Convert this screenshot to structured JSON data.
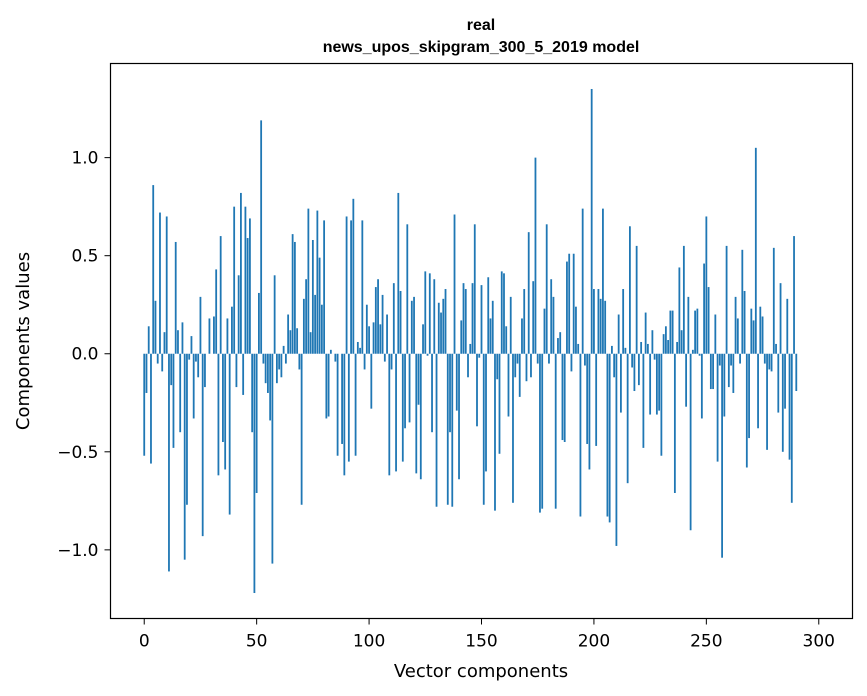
{
  "chart_data": {
    "type": "bar",
    "title_lines": [
      "real",
      "news_upos_skipgram_300_5_2019 model"
    ],
    "xlabel": "Vector components",
    "ylabel": "Components values",
    "xlim": [
      -15,
      315
    ],
    "ylim": [
      -1.35,
      1.48
    ],
    "x_ticks": [
      0,
      50,
      100,
      150,
      200,
      250,
      300
    ],
    "x_tick_labels": [
      "0",
      "50",
      "100",
      "150",
      "200",
      "250",
      "300"
    ],
    "y_ticks": [
      -1.0,
      -0.5,
      0.0,
      0.5,
      1.0
    ],
    "y_tick_labels": [
      "−1.0",
      "−0.5",
      "0.0",
      "0.5",
      "1.0"
    ],
    "grid": false,
    "bar_color": "#1f77b4",
    "values": [
      -0.52,
      -0.2,
      0.14,
      -0.56,
      0.86,
      0.27,
      -0.05,
      0.72,
      -0.09,
      0.11,
      0.7,
      -1.11,
      -0.16,
      -0.48,
      0.57,
      0.12,
      -0.4,
      0.16,
      -1.05,
      -0.77,
      -0.03,
      0.09,
      -0.33,
      -0.04,
      -0.12,
      0.29,
      -0.93,
      -0.17,
      0.0,
      0.18,
      0.0,
      0.19,
      0.43,
      -0.62,
      0.6,
      -0.45,
      -0.59,
      0.18,
      -0.82,
      0.24,
      0.75,
      -0.17,
      0.4,
      0.82,
      -0.21,
      0.75,
      0.59,
      0.69,
      -0.4,
      -1.22,
      -0.71,
      0.31,
      1.19,
      -0.05,
      -0.15,
      -0.2,
      -0.34,
      -1.07,
      0.4,
      -0.15,
      -0.08,
      -0.12,
      0.04,
      -0.05,
      0.2,
      0.12,
      0.61,
      0.57,
      0.13,
      -0.08,
      -0.77,
      0.28,
      0.38,
      0.74,
      0.11,
      0.58,
      0.3,
      0.73,
      0.49,
      0.25,
      0.68,
      -0.33,
      -0.32,
      0.02,
      0.0,
      -0.04,
      -0.52,
      0.0,
      -0.46,
      -0.62,
      0.7,
      -0.55,
      0.68,
      0.79,
      -0.52,
      0.06,
      0.03,
      0.68,
      -0.08,
      0.25,
      0.14,
      -0.28,
      0.16,
      0.34,
      0.38,
      0.15,
      0.3,
      -0.04,
      0.2,
      -0.62,
      -0.08,
      0.36,
      -0.6,
      0.82,
      0.32,
      -0.55,
      -0.38,
      0.66,
      -0.35,
      0.27,
      0.29,
      -0.61,
      -0.26,
      -0.64,
      0.15,
      0.42,
      -0.01,
      0.41,
      -0.4,
      0.38,
      -0.78,
      0.26,
      0.21,
      0.28,
      0.33,
      -0.77,
      -0.4,
      -0.78,
      0.71,
      -0.29,
      -0.64,
      0.17,
      0.36,
      0.33,
      -0.12,
      0.05,
      0.36,
      0.66,
      -0.37,
      -0.02,
      0.35,
      -0.77,
      -0.6,
      0.39,
      0.18,
      0.27,
      -0.8,
      -0.13,
      -0.51,
      0.42,
      0.41,
      0.14,
      -0.32,
      0.29,
      -0.76,
      -0.12,
      -0.05,
      -0.22,
      0.18,
      0.33,
      -0.14,
      0.62,
      -0.12,
      0.37,
      1.0,
      -0.05,
      -0.81,
      -0.79,
      0.23,
      0.66,
      -0.05,
      0.38,
      0.29,
      -0.79,
      0.08,
      0.11,
      -0.44,
      -0.45,
      0.47,
      0.51,
      -0.09,
      0.51,
      0.24,
      0.05,
      -0.83,
      0.74,
      -0.06,
      -0.46,
      -0.59,
      1.35,
      0.33,
      -0.47,
      0.33,
      0.28,
      0.74,
      0.27,
      -0.83,
      -0.86,
      0.04,
      -0.12,
      -0.98,
      0.2,
      -0.3,
      0.33,
      0.03,
      -0.66,
      0.65,
      -0.07,
      -0.19,
      0.55,
      -0.16,
      0.06,
      -0.48,
      0.21,
      0.05,
      -0.31,
      0.12,
      -0.03,
      -0.31,
      -0.29,
      -0.52,
      0.1,
      0.14,
      0.07,
      0.22,
      0.22,
      -0.71,
      0.06,
      0.44,
      0.12,
      0.55,
      -0.27,
      0.29,
      -0.9,
      0.02,
      0.22,
      0.23,
      -0.01,
      -0.33,
      0.46,
      0.7,
      0.34,
      -0.18,
      -0.18,
      0.2,
      -0.55,
      -0.06,
      -1.04,
      -0.32,
      0.55,
      -0.17,
      -0.06,
      -0.2,
      0.29,
      0.18,
      -0.05,
      0.53,
      0.32,
      -0.58,
      -0.43,
      0.23,
      0.17,
      1.05,
      -0.38,
      0.24,
      0.19,
      -0.05,
      -0.49,
      -0.08,
      -0.09,
      0.54,
      0.05,
      -0.3,
      0.36,
      -0.5,
      -0.28,
      0.28,
      -0.54,
      -0.76,
      0.6,
      -0.19
    ]
  }
}
